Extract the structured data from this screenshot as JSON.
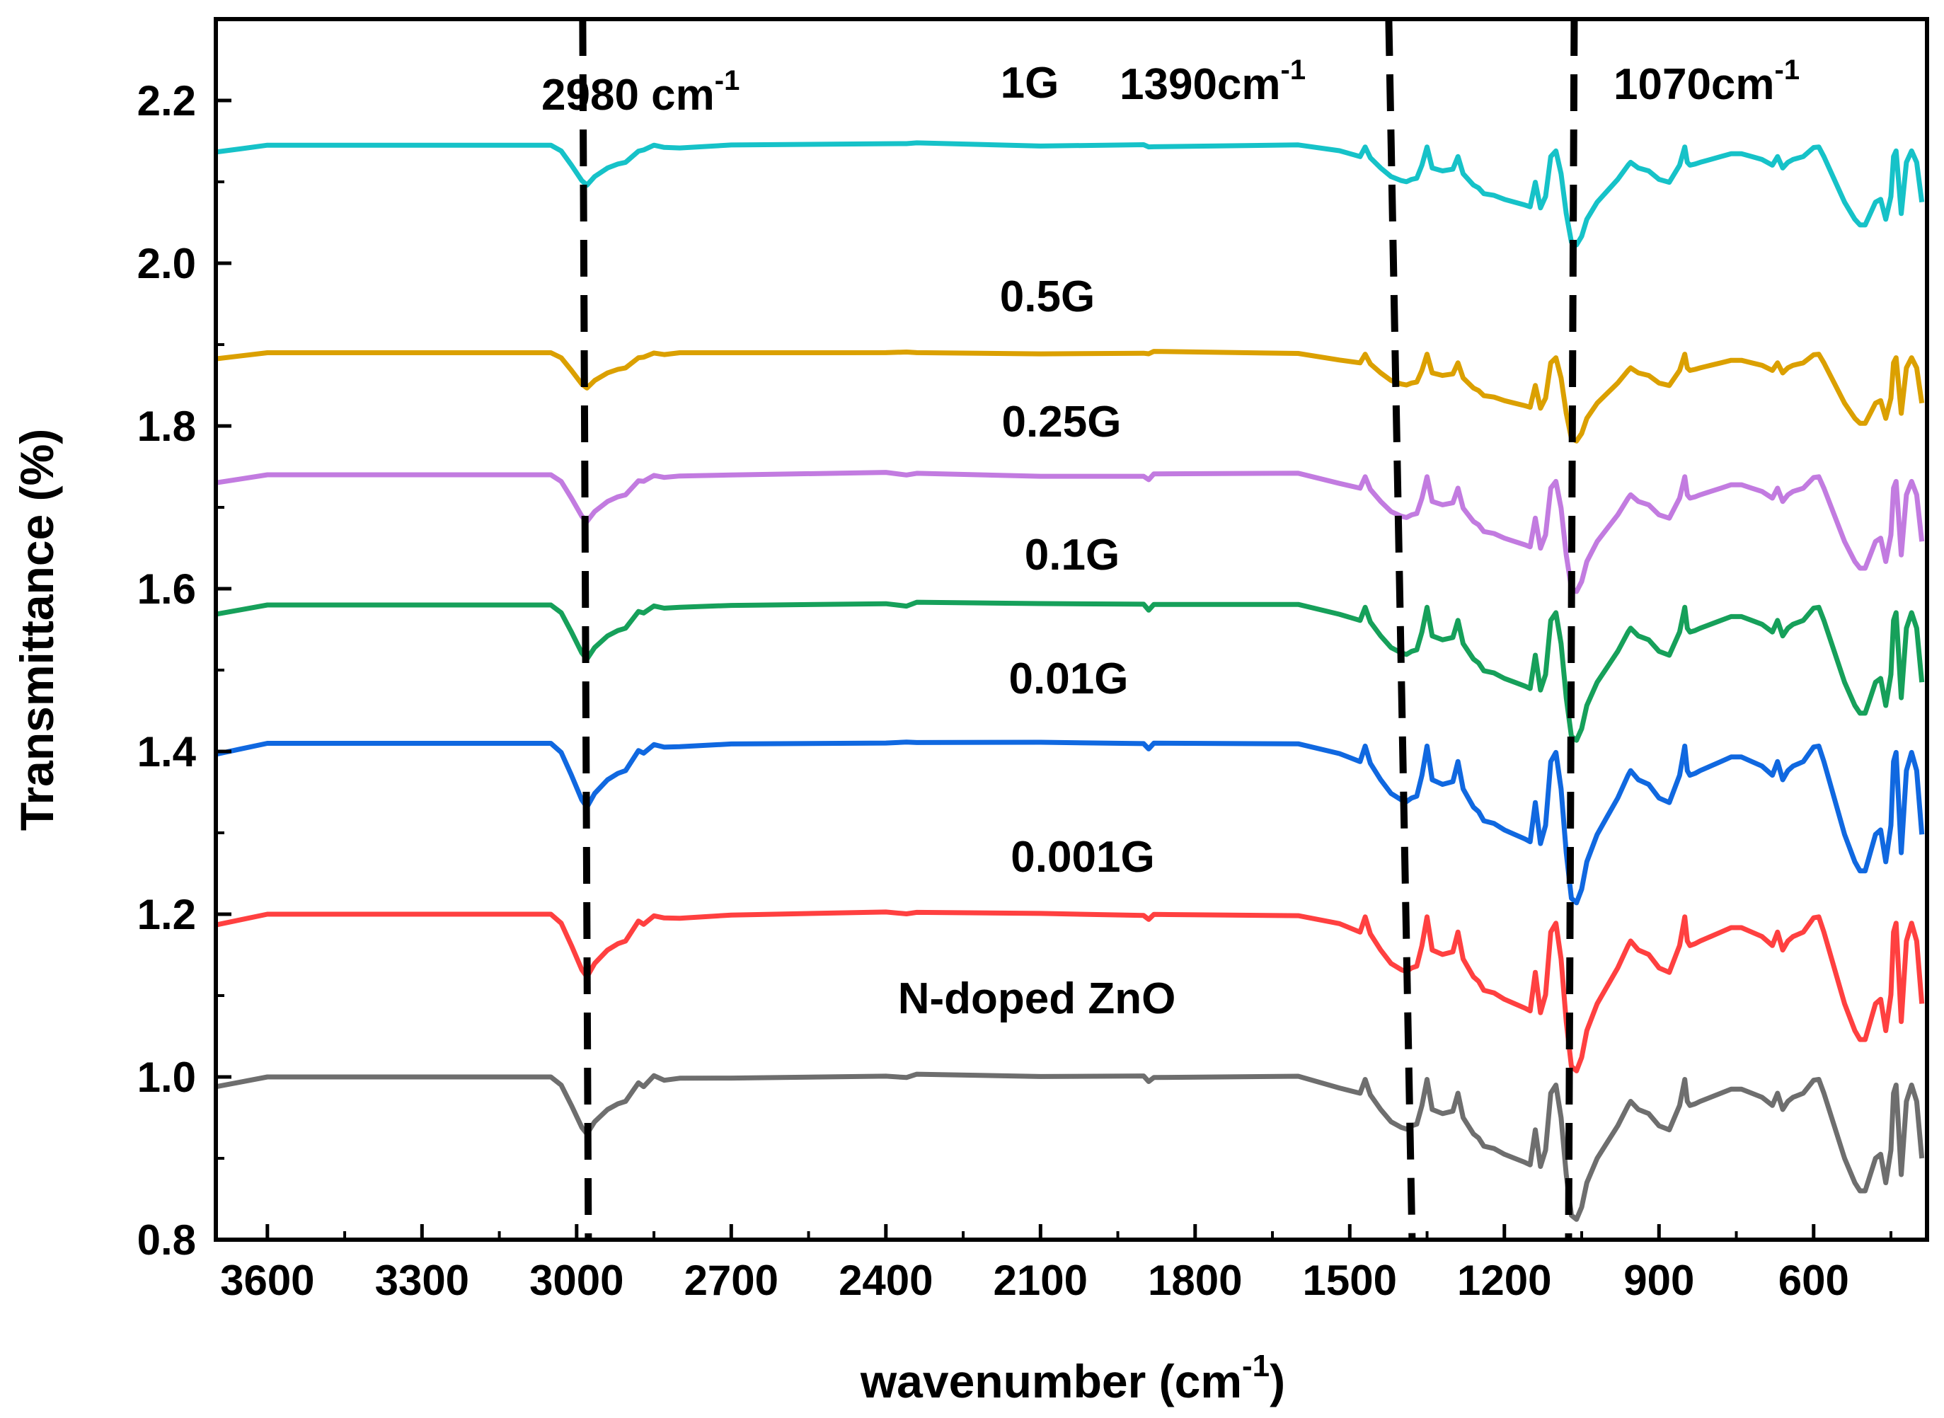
{
  "chart_data": {
    "type": "line",
    "title": "",
    "xlabel": "wavenumber (cm",
    "xlabel_sup": "-1",
    "xlabel_close": ")",
    "ylabel": "Transmittance (%)",
    "xlim": [
      3700,
      380
    ],
    "ylim": [
      0.8,
      2.3
    ],
    "x_ticks": [
      3600,
      3300,
      3000,
      2700,
      2400,
      2100,
      1800,
      1500,
      1200,
      900,
      600
    ],
    "y_ticks": [
      "0.8",
      "1.0",
      "1.2",
      "1.4",
      "1.6",
      "1.8",
      "2.0",
      "2.2"
    ],
    "reference_lines": [
      {
        "x": 2980,
        "label": "2980 cm",
        "sup": "-1"
      },
      {
        "x": 1390,
        "label": "1390cm",
        "sup": "-1"
      },
      {
        "x": 1070,
        "label": "1070cm",
        "sup": "-1"
      }
    ],
    "series": [
      {
        "name": "N-doped ZnO",
        "color": "#6e6e6e",
        "offset": 1.0,
        "scale": 1.0
      },
      {
        "name": "0.001G",
        "color": "#ff4040",
        "offset": 1.2,
        "scale": 1.1
      },
      {
        "name": "0.01G",
        "color": "#1068e0",
        "offset": 1.41,
        "scale": 1.12
      },
      {
        "name": "0.1G",
        "color": "#16a05a",
        "offset": 1.58,
        "scale": 0.95
      },
      {
        "name": "0.25G",
        "color": "#c27be0",
        "offset": 1.74,
        "scale": 0.82
      },
      {
        "name": "0.5G",
        "color": "#dba000",
        "offset": 1.89,
        "scale": 0.62
      },
      {
        "name": "1G",
        "color": "#16c2c8",
        "offset": 2.145,
        "scale": 0.7
      }
    ],
    "base_profile_note": "values below are transmittance deviations of the N-doped ZnO baseline; other series = offset + scale * deviation",
    "base_profile": {
      "x": [
        3700,
        3650,
        3600,
        3400,
        3200,
        3050,
        3030,
        3010,
        2990,
        2980,
        2965,
        2940,
        2920,
        2905,
        2880,
        2870,
        2850,
        2830,
        2800,
        2700,
        2400,
        2360,
        2340,
        2100,
        1900,
        1890,
        1880,
        1600,
        1520,
        1480,
        1470,
        1460,
        1440,
        1420,
        1400,
        1390,
        1380,
        1370,
        1360,
        1350,
        1340,
        1320,
        1300,
        1290,
        1280,
        1260,
        1250,
        1240,
        1220,
        1200,
        1180,
        1160,
        1150,
        1140,
        1130,
        1120,
        1110,
        1100,
        1090,
        1080,
        1070,
        1060,
        1050,
        1040,
        1020,
        1000,
        980,
        960,
        955,
        940,
        920,
        900,
        880,
        860,
        850,
        845,
        840,
        830,
        820,
        800,
        780,
        760,
        740,
        720,
        700,
        680,
        670,
        660,
        650,
        640,
        620,
        600,
        590,
        580,
        560,
        540,
        520,
        510,
        500,
        490,
        480,
        470,
        460,
        450,
        445,
        440,
        430,
        420,
        410,
        400,
        390
      ],
      "y": [
        -0.012,
        -0.006,
        0.0,
        0.0,
        0.0,
        0.0,
        -0.01,
        -0.035,
        -0.062,
        -0.07,
        -0.055,
        -0.04,
        -0.033,
        -0.03,
        -0.008,
        -0.01,
        0.0,
        -0.005,
        -0.003,
        0.0,
        0.002,
        0.0,
        0.002,
        0.0,
        0.0,
        -0.005,
        0.0,
        0.0,
        -0.012,
        -0.02,
        -0.003,
        -0.022,
        -0.04,
        -0.055,
        -0.062,
        -0.064,
        -0.06,
        -0.058,
        -0.035,
        -0.003,
        -0.04,
        -0.045,
        -0.042,
        -0.02,
        -0.05,
        -0.07,
        -0.075,
        -0.085,
        -0.088,
        -0.095,
        -0.1,
        -0.105,
        -0.108,
        -0.065,
        -0.11,
        -0.09,
        -0.02,
        -0.01,
        -0.05,
        -0.12,
        -0.17,
        -0.175,
        -0.16,
        -0.13,
        -0.1,
        -0.08,
        -0.06,
        -0.035,
        -0.03,
        -0.04,
        -0.045,
        -0.06,
        -0.065,
        -0.035,
        -0.003,
        -0.03,
        -0.035,
        -0.033,
        -0.03,
        -0.025,
        -0.02,
        -0.015,
        -0.015,
        -0.02,
        -0.025,
        -0.035,
        -0.02,
        -0.04,
        -0.03,
        -0.025,
        -0.02,
        -0.004,
        -0.003,
        -0.02,
        -0.06,
        -0.1,
        -0.13,
        -0.14,
        -0.14,
        -0.12,
        -0.1,
        -0.095,
        -0.13,
        -0.09,
        -0.02,
        -0.01,
        -0.12,
        -0.03,
        -0.01,
        -0.03,
        -0.1
      ]
    }
  }
}
